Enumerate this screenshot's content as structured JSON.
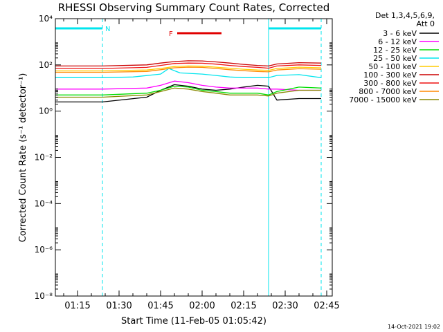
{
  "chart_data": {
    "type": "line",
    "title": "RHESSI Observing Summary Count Rates, Corrected",
    "xlabel": "Start Time (11-Feb-05 01:05:42)",
    "ylabel": "Corrected Count Rate (s⁻¹ detector⁻¹)",
    "x_ticks": [
      "01:15",
      "01:30",
      "01:45",
      "02:00",
      "02:15",
      "02:30",
      "02:45"
    ],
    "x_range": [
      "01:07",
      "02:47"
    ],
    "y_scale": "log",
    "y_ticks": [
      "10⁻⁸",
      "10⁻⁶",
      "10⁻⁴",
      "10⁻²",
      "10⁰",
      "10²",
      "10⁴"
    ],
    "ylim": [
      1e-08,
      10000.0
    ],
    "grid": false,
    "detector_info": [
      "Det 1,3,4,5,6,9,",
      "Att 0"
    ],
    "annotations": [
      {
        "label": "N",
        "kind": "night",
        "from": "01:07",
        "to": "01:24",
        "color": "#00e5ee"
      },
      {
        "label": "",
        "kind": "night",
        "from": "02:24",
        "to": "02:43",
        "color": "#00e5ee"
      },
      {
        "label": "F",
        "kind": "flare",
        "from": "01:50",
        "to": "02:07",
        "color": "#e00000"
      }
    ],
    "legend_position": "right",
    "series": [
      {
        "name": "3 - 6 keV",
        "color": "#000000",
        "points": [
          [
            "01:07",
            2.5
          ],
          [
            "01:24",
            2.5
          ],
          [
            "01:40",
            4
          ],
          [
            "01:45",
            8
          ],
          [
            "01:50",
            14
          ],
          [
            "01:55",
            12
          ],
          [
            "02:00",
            9
          ],
          [
            "02:05",
            8
          ],
          [
            "02:10",
            9
          ],
          [
            "02:15",
            11
          ],
          [
            "02:20",
            13
          ],
          [
            "02:24",
            12
          ],
          [
            "02:27",
            3
          ],
          [
            "02:35",
            3.5
          ],
          [
            "02:43",
            3.5
          ]
        ]
      },
      {
        "name": "6 - 12 keV",
        "color": "#ff00ff",
        "points": [
          [
            "01:07",
            9
          ],
          [
            "01:24",
            9
          ],
          [
            "01:40",
            10
          ],
          [
            "01:45",
            13
          ],
          [
            "01:50",
            20
          ],
          [
            "01:55",
            17
          ],
          [
            "02:00",
            13
          ],
          [
            "02:05",
            11
          ],
          [
            "02:10",
            10
          ],
          [
            "02:15",
            10
          ],
          [
            "02:20",
            10
          ],
          [
            "02:24",
            9
          ],
          [
            "02:27",
            9
          ],
          [
            "02:35",
            8
          ],
          [
            "02:43",
            8
          ]
        ]
      },
      {
        "name": "12 - 25 keV",
        "color": "#00dd00",
        "points": [
          [
            "01:07",
            5
          ],
          [
            "01:24",
            5
          ],
          [
            "01:40",
            6
          ],
          [
            "01:45",
            8
          ],
          [
            "01:50",
            12
          ],
          [
            "01:55",
            11
          ],
          [
            "02:00",
            8
          ],
          [
            "02:05",
            7
          ],
          [
            "02:10",
            6
          ],
          [
            "02:15",
            6
          ],
          [
            "02:20",
            6
          ],
          [
            "02:24",
            5
          ],
          [
            "02:27",
            7
          ],
          [
            "02:35",
            11
          ],
          [
            "02:43",
            10
          ]
        ]
      },
      {
        "name": "25 - 50 keV",
        "color": "#00e5ee",
        "points": [
          [
            "01:07",
            28
          ],
          [
            "01:24",
            28
          ],
          [
            "01:35",
            30
          ],
          [
            "01:45",
            40
          ],
          [
            "01:48",
            70
          ],
          [
            "01:52",
            45
          ],
          [
            "02:00",
            40
          ],
          [
            "02:05",
            35
          ],
          [
            "02:10",
            30
          ],
          [
            "02:15",
            28
          ],
          [
            "02:20",
            28
          ],
          [
            "02:24",
            28
          ],
          [
            "02:27",
            35
          ],
          [
            "02:35",
            38
          ],
          [
            "02:43",
            28
          ]
        ]
      },
      {
        "name": "50 - 100 keV",
        "color": "#ffcc00",
        "points": [
          [
            "01:07",
            55
          ],
          [
            "01:24",
            55
          ],
          [
            "01:40",
            60
          ],
          [
            "01:45",
            70
          ],
          [
            "01:50",
            85
          ],
          [
            "01:55",
            90
          ],
          [
            "02:00",
            88
          ],
          [
            "02:05",
            80
          ],
          [
            "02:10",
            72
          ],
          [
            "02:15",
            65
          ],
          [
            "02:20",
            60
          ],
          [
            "02:24",
            58
          ],
          [
            "02:27",
            70
          ],
          [
            "02:35",
            80
          ],
          [
            "02:43",
            75
          ]
        ]
      },
      {
        "name": "100 - 300 keV",
        "color": "#cc0000",
        "points": [
          [
            "01:07",
            90
          ],
          [
            "01:24",
            90
          ],
          [
            "01:40",
            100
          ],
          [
            "01:45",
            120
          ],
          [
            "01:50",
            140
          ],
          [
            "01:55",
            150
          ],
          [
            "02:00",
            148
          ],
          [
            "02:05",
            135
          ],
          [
            "02:10",
            120
          ],
          [
            "02:15",
            105
          ],
          [
            "02:20",
            95
          ],
          [
            "02:24",
            90
          ],
          [
            "02:27",
            110
          ],
          [
            "02:35",
            125
          ],
          [
            "02:43",
            120
          ]
        ]
      },
      {
        "name": "300 - 800 keV",
        "color": "#ee1111",
        "points": [
          [
            "01:07",
            70
          ],
          [
            "01:24",
            70
          ],
          [
            "01:40",
            78
          ],
          [
            "01:45",
            95
          ],
          [
            "01:50",
            115
          ],
          [
            "01:55",
            120
          ],
          [
            "02:00",
            118
          ],
          [
            "02:05",
            108
          ],
          [
            "02:10",
            95
          ],
          [
            "02:15",
            85
          ],
          [
            "02:20",
            78
          ],
          [
            "02:24",
            72
          ],
          [
            "02:27",
            90
          ],
          [
            "02:35",
            100
          ],
          [
            "02:43",
            95
          ]
        ]
      },
      {
        "name": "800 - 7000 keV",
        "color": "#ff8800",
        "points": [
          [
            "01:07",
            48
          ],
          [
            "01:24",
            48
          ],
          [
            "01:40",
            52
          ],
          [
            "01:45",
            62
          ],
          [
            "01:50",
            75
          ],
          [
            "01:55",
            80
          ],
          [
            "02:00",
            78
          ],
          [
            "02:05",
            70
          ],
          [
            "02:10",
            62
          ],
          [
            "02:15",
            56
          ],
          [
            "02:20",
            52
          ],
          [
            "02:24",
            50
          ],
          [
            "02:27",
            60
          ],
          [
            "02:35",
            68
          ],
          [
            "02:43",
            65
          ]
        ]
      },
      {
        "name": "7000 - 15000 keV",
        "color": "#888800",
        "points": [
          [
            "01:07",
            4
          ],
          [
            "01:24",
            4
          ],
          [
            "01:40",
            5
          ],
          [
            "01:45",
            7
          ],
          [
            "01:50",
            10
          ],
          [
            "01:55",
            9
          ],
          [
            "02:00",
            7
          ],
          [
            "02:05",
            6
          ],
          [
            "02:10",
            5
          ],
          [
            "02:15",
            5
          ],
          [
            "02:20",
            5
          ],
          [
            "02:24",
            4.5
          ],
          [
            "02:27",
            6
          ],
          [
            "02:35",
            8
          ],
          [
            "02:43",
            8
          ]
        ]
      }
    ],
    "footer_date": "14-Oct-2021 19:02"
  }
}
